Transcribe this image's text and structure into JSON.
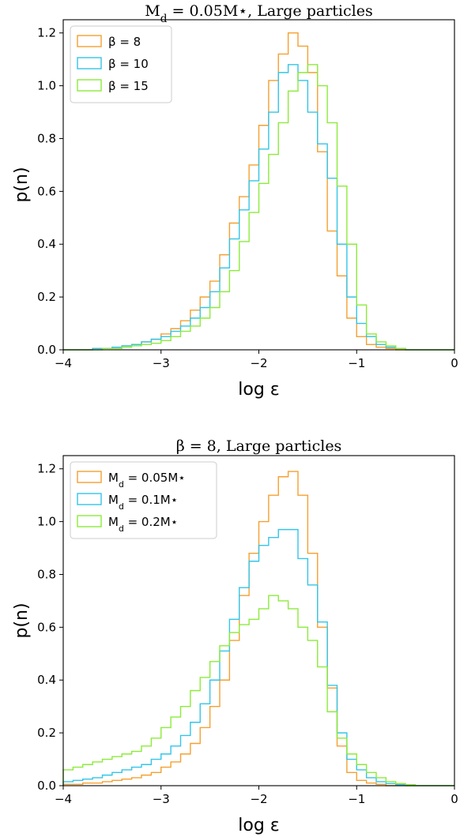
{
  "chart_data": [
    {
      "type": "histogram-step",
      "title": "M_d = 0.05M⋆, Large particles",
      "xlabel": "log ε",
      "ylabel": "p(n)",
      "xlim": [
        -4,
        0
      ],
      "ylim": [
        0,
        1.25
      ],
      "xticks": [
        "−4",
        "−3",
        "−2",
        "−1",
        "0"
      ],
      "yticks": [
        "0.0",
        "0.2",
        "0.4",
        "0.6",
        "0.8",
        "1.0",
        "1.2"
      ],
      "legend_position": "top-left",
      "bin_start": -4.0,
      "bin_width": 0.1,
      "series": [
        {
          "name": "β = 8",
          "color": "#f5a030",
          "values": [
            0.0,
            0.0,
            0.0,
            0.005,
            0.005,
            0.01,
            0.015,
            0.02,
            0.03,
            0.04,
            0.06,
            0.08,
            0.11,
            0.15,
            0.2,
            0.26,
            0.36,
            0.48,
            0.58,
            0.7,
            0.85,
            1.02,
            1.12,
            1.2,
            1.15,
            1.05,
            0.75,
            0.45,
            0.28,
            0.12,
            0.05,
            0.02,
            0.01,
            0.005,
            0.0,
            0.0,
            0.0,
            0.0,
            0.0,
            0.0
          ]
        },
        {
          "name": "β = 10",
          "color": "#33c5e8",
          "values": [
            0.0,
            0.0,
            0.0,
            0.005,
            0.005,
            0.01,
            0.015,
            0.02,
            0.03,
            0.04,
            0.05,
            0.07,
            0.09,
            0.12,
            0.16,
            0.22,
            0.31,
            0.42,
            0.53,
            0.64,
            0.76,
            0.9,
            1.05,
            1.08,
            1.02,
            0.9,
            0.78,
            0.65,
            0.4,
            0.2,
            0.1,
            0.05,
            0.02,
            0.01,
            0.005,
            0.0,
            0.0,
            0.0,
            0.0,
            0.0
          ]
        },
        {
          "name": "β = 15",
          "color": "#8ceb3a",
          "values": [
            0.0,
            0.0,
            0.0,
            0.0,
            0.005,
            0.005,
            0.01,
            0.015,
            0.02,
            0.025,
            0.035,
            0.05,
            0.07,
            0.09,
            0.12,
            0.16,
            0.22,
            0.3,
            0.41,
            0.52,
            0.63,
            0.74,
            0.86,
            0.98,
            1.05,
            1.08,
            1.0,
            0.86,
            0.62,
            0.4,
            0.17,
            0.06,
            0.03,
            0.015,
            0.005,
            0.0,
            0.0,
            0.0,
            0.0,
            0.0
          ]
        }
      ]
    },
    {
      "type": "histogram-step",
      "title": "β = 8, Large particles",
      "xlabel": "log ε",
      "ylabel": "p(n)",
      "xlim": [
        -4,
        0
      ],
      "ylim": [
        0,
        1.25
      ],
      "xticks": [
        "−4",
        "−3",
        "−2",
        "−1",
        "0"
      ],
      "yticks": [
        "0.0",
        "0.2",
        "0.4",
        "0.6",
        "0.8",
        "1.0",
        "1.2"
      ],
      "legend_position": "top-left",
      "bin_start": -4.0,
      "bin_width": 0.1,
      "series": [
        {
          "name": "M_d = 0.05M⋆",
          "color": "#f5a030",
          "values": [
            0.005,
            0.005,
            0.01,
            0.01,
            0.015,
            0.02,
            0.025,
            0.03,
            0.04,
            0.05,
            0.07,
            0.09,
            0.12,
            0.16,
            0.22,
            0.3,
            0.4,
            0.55,
            0.72,
            0.88,
            1.0,
            1.1,
            1.17,
            1.19,
            1.1,
            0.88,
            0.6,
            0.37,
            0.15,
            0.05,
            0.02,
            0.01,
            0.005,
            0.0,
            0.0,
            0.0,
            0.0,
            0.0,
            0.0,
            0.0
          ]
        },
        {
          "name": "M_d = 0.1M⋆",
          "color": "#33c5e8",
          "values": [
            0.015,
            0.02,
            0.025,
            0.03,
            0.04,
            0.05,
            0.06,
            0.07,
            0.08,
            0.1,
            0.12,
            0.15,
            0.19,
            0.24,
            0.31,
            0.4,
            0.51,
            0.63,
            0.75,
            0.85,
            0.91,
            0.94,
            0.97,
            0.97,
            0.86,
            0.76,
            0.62,
            0.38,
            0.2,
            0.1,
            0.06,
            0.03,
            0.015,
            0.008,
            0.004,
            0.0,
            0.0,
            0.0,
            0.0,
            0.0
          ]
        },
        {
          "name": "M_d = 0.2M⋆",
          "color": "#8ceb3a",
          "values": [
            0.06,
            0.07,
            0.08,
            0.09,
            0.1,
            0.11,
            0.12,
            0.13,
            0.15,
            0.18,
            0.22,
            0.26,
            0.3,
            0.36,
            0.41,
            0.47,
            0.53,
            0.58,
            0.61,
            0.63,
            0.67,
            0.72,
            0.7,
            0.67,
            0.6,
            0.55,
            0.45,
            0.28,
            0.18,
            0.12,
            0.08,
            0.05,
            0.03,
            0.015,
            0.008,
            0.004,
            0.0,
            0.0,
            0.0,
            0.0
          ]
        }
      ]
    }
  ]
}
